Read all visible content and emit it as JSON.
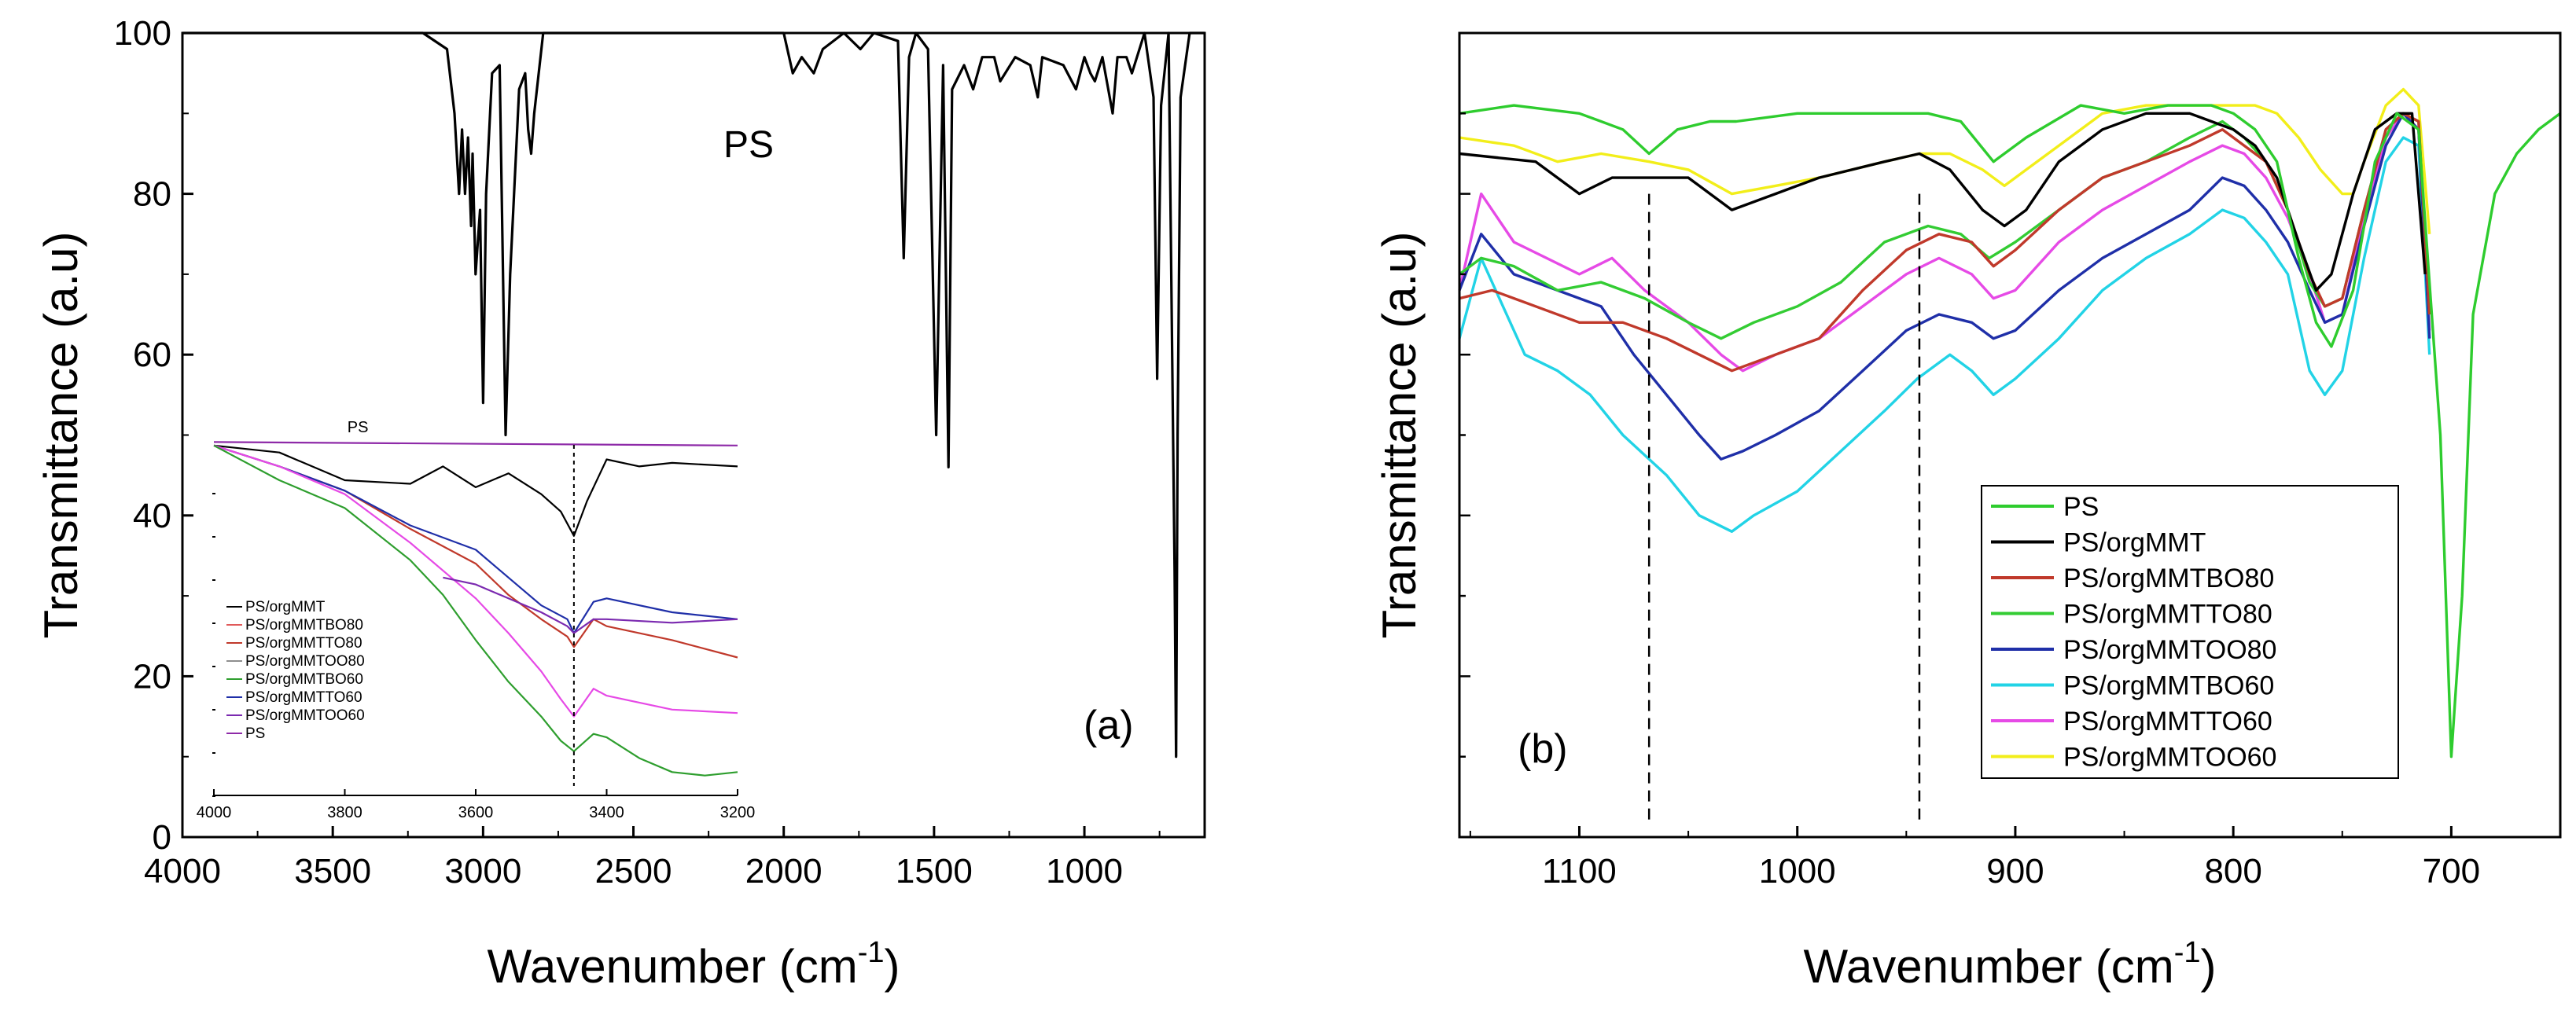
{
  "colors": {
    "axis": "#000000",
    "PS": "#2ecc2e",
    "PS/orgMMT": "#000000",
    "PS/orgMMTBO80": "#c0392b",
    "PS/orgMMTTO80": "#33cc33",
    "PS/orgMMTOO80": "#1f2fa8",
    "PS/orgMMTBO60": "#22d3e6",
    "PS/orgMMTTO60": "#e64ae6",
    "PS/orgMMTOO60": "#f2ee1a"
  },
  "chart_data": [
    {
      "id": "a",
      "type": "line",
      "panel_label": "(a)",
      "annotation": "PS",
      "xlabel": "Wavenumber (cm",
      "xlabel_sup": "-1",
      "xlabel_close": ")",
      "ylabel": "Transmittance (a.u)",
      "xlim": [
        4000,
        600
      ],
      "ylim": [
        0,
        100
      ],
      "x_ticks": [
        "4000",
        "3500",
        "3000",
        "2500",
        "2000",
        "1500",
        "1000"
      ],
      "y_ticks": [
        "0",
        "20",
        "40",
        "60",
        "80",
        "100"
      ],
      "series": [
        {
          "name": "PS",
          "x": [
            4000,
            3200,
            3120,
            3095,
            3080,
            3070,
            3060,
            3050,
            3040,
            3035,
            3025,
            3010,
            3000,
            2990,
            2970,
            2945,
            2925,
            2910,
            2880,
            2860,
            2850,
            2840,
            2830,
            2800,
            2000,
            1970,
            1940,
            1900,
            1870,
            1800,
            1745,
            1700,
            1620,
            1601,
            1583,
            1560,
            1520,
            1493,
            1470,
            1452,
            1440,
            1400,
            1370,
            1340,
            1300,
            1280,
            1230,
            1180,
            1155,
            1140,
            1070,
            1028,
            1000,
            980,
            965,
            940,
            906,
            890,
            860,
            842,
            800,
            770,
            758,
            745,
            720,
            700,
            695,
            690,
            680,
            650,
            600
          ],
          "y": [
            100,
            100,
            98,
            90,
            80,
            88,
            80,
            87,
            76,
            85,
            70,
            78,
            54,
            80,
            95,
            96,
            50,
            70,
            93,
            95,
            88,
            85,
            90,
            100,
            100,
            95,
            97,
            95,
            98,
            100,
            98,
            100,
            99,
            72,
            97,
            100,
            98,
            50,
            96,
            46,
            93,
            96,
            93,
            97,
            97,
            94,
            97,
            96,
            92,
            97,
            96,
            93,
            97,
            95,
            94,
            97,
            90,
            97,
            97,
            95,
            100,
            92,
            57,
            91,
            100,
            33,
            10,
            50,
            92,
            100,
            100
          ]
        }
      ],
      "inset": {
        "x_ticks": [
          "4000",
          "3800",
          "3600",
          "3400",
          "3200"
        ],
        "xlim": [
          4000,
          3200
        ],
        "ylim": [
          0,
          100
        ],
        "annotation": "PS",
        "marker_x": 3450,
        "legend": [
          "PS/orgMMT",
          "PS/orgMMTBO80",
          "PS/orgMMTTO80",
          "PS/orgMMTOO80",
          "PS/orgMMTBO60",
          "PS/orgMMTTO60",
          "PS/orgMMTOO60",
          "PS"
        ],
        "series": [
          {
            "name": "PS",
            "x": [
              4000,
              3200
            ],
            "y": [
              99,
              98
            ]
          },
          {
            "name": "PS/orgMMT",
            "x": [
              4000,
              3900,
              3800,
              3700,
              3650,
              3600,
              3550,
              3500,
              3470,
              3450,
              3430,
              3400,
              3350,
              3300,
              3200
            ],
            "y": [
              98,
              96,
              88,
              87,
              92,
              86,
              90,
              84,
              79,
              72,
              82,
              94,
              92,
              93,
              92
            ]
          },
          {
            "name": "PS/orgMMTBO80",
            "x": [
              4000,
              3900,
              3800,
              3700,
              3600,
              3550,
              3500,
              3460,
              3450,
              3420,
              3400,
              3300,
              3200
            ],
            "y": [
              98,
              92,
              85,
              74,
              64,
              55,
              48,
              43,
              40,
              48,
              46,
              42,
              37
            ]
          },
          {
            "name": "PS/orgMMTOO80",
            "x": [
              4000,
              3900,
              3800,
              3700,
              3600,
              3550,
              3500,
              3460,
              3450,
              3420,
              3400,
              3300,
              3200
            ],
            "y": [
              98,
              92,
              85,
              75,
              68,
              60,
              52,
              48,
              44,
              53,
              54,
              50,
              48
            ]
          },
          {
            "name": "PS/orgMMTTO60",
            "x": [
              4000,
              3900,
              3800,
              3700,
              3600,
              3550,
              3500,
              3470,
              3450,
              3420,
              3400,
              3300,
              3200
            ],
            "y": [
              98,
              92,
              84,
              70,
              54,
              44,
              33,
              25,
              20,
              28,
              26,
              22,
              21
            ]
          },
          {
            "name": "PS/orgMMTBO60",
            "x": [
              4000,
              3900,
              3800,
              3700,
              3650,
              3600,
              3550,
              3500,
              3470,
              3450,
              3420,
              3400,
              3350,
              3300,
              3250,
              3200
            ],
            "y": [
              98,
              88,
              80,
              65,
              55,
              42,
              30,
              20,
              13,
              10,
              15,
              14,
              8,
              4,
              3,
              4
            ]
          },
          {
            "name": "PS/orgMMTOO60",
            "x": [
              3650,
              3600,
              3550,
              3500,
              3460,
              3450,
              3420,
              3400,
              3300,
              3200
            ],
            "y": [
              60,
              58,
              54,
              50,
              46,
              44,
              48,
              48,
              47,
              48
            ]
          }
        ]
      }
    },
    {
      "id": "b",
      "type": "line",
      "panel_label": "(b)",
      "xlabel": "Wavenumber (cm",
      "xlabel_sup": "-1",
      "xlabel_close": ")",
      "ylabel": "Transmittance (a.u)",
      "xlim": [
        1155,
        650
      ],
      "ylim": [
        0,
        100
      ],
      "x_ticks": [
        "1100",
        "1000",
        "900",
        "800",
        "700"
      ],
      "dashed_markers": [
        1068,
        944
      ],
      "legend": [
        "PS",
        "PS/orgMMT",
        "PS/orgMMTBO80",
        "PS/orgMMTTO80",
        "PS/orgMMTOO80",
        "PS/orgMMTBO60",
        "PS/orgMMTTO60",
        "PS/orgMMTOO60"
      ],
      "series": [
        {
          "name": "PS",
          "x": [
            1155,
            1130,
            1100,
            1080,
            1068,
            1055,
            1040,
            1028,
            1000,
            980,
            960,
            940,
            925,
            910,
            895,
            870,
            850,
            830,
            810,
            800,
            790,
            780,
            770,
            762,
            755,
            745,
            735,
            725,
            715,
            705,
            700,
            695,
            690,
            680,
            670,
            660,
            650
          ],
          "y": [
            90,
            91,
            90,
            88,
            85,
            88,
            89,
            89,
            90,
            90,
            90,
            90,
            89,
            84,
            87,
            91,
            90,
            91,
            91,
            90,
            88,
            84,
            72,
            64,
            61,
            68,
            84,
            90,
            88,
            50,
            10,
            30,
            65,
            80,
            85,
            88,
            90
          ]
        },
        {
          "name": "PS/orgMMT",
          "x": [
            1155,
            1120,
            1100,
            1085,
            1068,
            1050,
            1040,
            1030,
            1010,
            990,
            960,
            944,
            930,
            915,
            905,
            895,
            880,
            860,
            840,
            820,
            810,
            800,
            790,
            780,
            770,
            762,
            755,
            745,
            735,
            725,
            718,
            712
          ],
          "y": [
            85,
            84,
            80,
            82,
            82,
            82,
            80,
            78,
            80,
            82,
            84,
            85,
            83,
            78,
            76,
            78,
            84,
            88,
            90,
            90,
            89,
            88,
            86,
            82,
            74,
            68,
            70,
            80,
            88,
            90,
            90,
            70
          ]
        },
        {
          "name": "PS/orgMMTBO80",
          "x": [
            1155,
            1140,
            1120,
            1100,
            1080,
            1060,
            1045,
            1030,
            1010,
            990,
            970,
            950,
            935,
            920,
            910,
            900,
            880,
            860,
            840,
            820,
            805,
            795,
            785,
            775,
            765,
            758,
            750,
            740,
            730,
            722,
            715,
            710
          ],
          "y": [
            67,
            68,
            66,
            64,
            64,
            62,
            60,
            58,
            60,
            62,
            68,
            73,
            75,
            74,
            71,
            73,
            78,
            82,
            84,
            86,
            88,
            86,
            84,
            78,
            70,
            66,
            67,
            78,
            88,
            90,
            89,
            65
          ]
        },
        {
          "name": "PS/orgMMTTO80",
          "x": [
            1155,
            1145,
            1130,
            1110,
            1090,
            1070,
            1050,
            1035,
            1020,
            1000,
            980,
            960,
            940,
            925,
            912,
            900,
            880,
            860,
            840,
            820,
            805,
            795,
            785,
            775,
            765,
            758,
            750,
            740,
            730,
            722,
            715,
            710
          ],
          "y": [
            70,
            72,
            71,
            68,
            69,
            67,
            64,
            62,
            64,
            66,
            69,
            74,
            76,
            75,
            72,
            74,
            78,
            82,
            84,
            87,
            89,
            87,
            84,
            78,
            69,
            66,
            67,
            78,
            88,
            90,
            89,
            65
          ]
        },
        {
          "name": "PS/orgMMTOO80",
          "x": [
            1155,
            1145,
            1130,
            1110,
            1090,
            1075,
            1060,
            1045,
            1035,
            1025,
            1010,
            990,
            970,
            950,
            935,
            920,
            910,
            900,
            880,
            860,
            840,
            820,
            805,
            795,
            785,
            775,
            765,
            758,
            750,
            740,
            730,
            722,
            715,
            710
          ],
          "y": [
            68,
            75,
            70,
            68,
            66,
            60,
            55,
            50,
            47,
            48,
            50,
            53,
            58,
            63,
            65,
            64,
            62,
            63,
            68,
            72,
            75,
            78,
            82,
            81,
            78,
            74,
            68,
            64,
            65,
            76,
            86,
            90,
            88,
            62
          ]
        },
        {
          "name": "PS/orgMMTBO60",
          "x": [
            1155,
            1145,
            1135,
            1125,
            1110,
            1095,
            1080,
            1060,
            1045,
            1030,
            1020,
            1000,
            980,
            960,
            945,
            930,
            920,
            910,
            900,
            880,
            860,
            840,
            820,
            805,
            795,
            785,
            775,
            765,
            758,
            750,
            740,
            730,
            722,
            715,
            710
          ],
          "y": [
            62,
            72,
            66,
            60,
            58,
            55,
            50,
            45,
            40,
            38,
            40,
            43,
            48,
            53,
            57,
            60,
            58,
            55,
            57,
            62,
            68,
            72,
            75,
            78,
            77,
            74,
            70,
            58,
            55,
            58,
            72,
            84,
            87,
            86,
            60
          ]
        },
        {
          "name": "PS/orgMMTTO60",
          "x": [
            1155,
            1145,
            1130,
            1115,
            1100,
            1085,
            1070,
            1050,
            1035,
            1025,
            1010,
            990,
            970,
            950,
            935,
            920,
            910,
            900,
            880,
            860,
            840,
            820,
            805,
            795,
            785,
            775,
            765,
            758,
            750,
            740,
            730,
            722,
            715,
            710
          ],
          "y": [
            68,
            80,
            74,
            72,
            70,
            72,
            68,
            64,
            60,
            58,
            60,
            62,
            66,
            70,
            72,
            70,
            67,
            68,
            74,
            78,
            81,
            84,
            86,
            85,
            82,
            77,
            70,
            64,
            65,
            77,
            87,
            90,
            88,
            63
          ]
        },
        {
          "name": "PS/orgMMTOO60",
          "x": [
            1155,
            1130,
            1110,
            1090,
            1068,
            1050,
            1030,
            1010,
            990,
            960,
            944,
            930,
            915,
            905,
            895,
            880,
            860,
            840,
            820,
            800,
            790,
            780,
            770,
            760,
            750,
            745,
            740,
            730,
            722,
            715,
            710
          ],
          "y": [
            87,
            86,
            84,
            85,
            84,
            83,
            80,
            81,
            82,
            84,
            85,
            85,
            83,
            81,
            83,
            86,
            90,
            91,
            91,
            91,
            91,
            90,
            87,
            83,
            80,
            80,
            84,
            91,
            93,
            91,
            75
          ]
        }
      ]
    }
  ]
}
